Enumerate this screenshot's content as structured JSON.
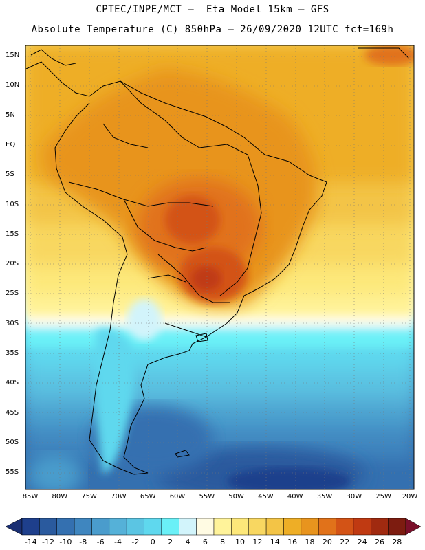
{
  "titles": {
    "line1": "CPTEC/INPE/MCT –  Eta Model 15km – GFS",
    "line2": "Absolute Temperature (C) 850hPa – 26/09/2020 12UTC fct=169h"
  },
  "map": {
    "lat_labels": [
      "15N",
      "10N",
      "5N",
      "EQ",
      "5S",
      "10S",
      "15S",
      "20S",
      "25S",
      "30S",
      "35S",
      "40S",
      "45S",
      "50S",
      "55S"
    ],
    "lon_labels": [
      "85W",
      "80W",
      "75W",
      "70W",
      "65W",
      "60W",
      "55W",
      "50W",
      "45W",
      "40W",
      "35W",
      "30W",
      "25W",
      "20W"
    ],
    "variable": "Absolute Temperature",
    "units": "C",
    "level": "850hPa"
  },
  "colorbar": {
    "labels": [
      "-14",
      "-12",
      "-10",
      "-8",
      "-6",
      "-4",
      "-2",
      "0",
      "2",
      "4",
      "6",
      "8",
      "10",
      "12",
      "14",
      "16",
      "18",
      "20",
      "22",
      "24",
      "26",
      "28"
    ],
    "colors": [
      "#1e3f8c",
      "#2a5a9e",
      "#3470b0",
      "#3f86bf",
      "#4a9ccc",
      "#55b1d8",
      "#5bc5e3",
      "#5fd8ee",
      "#6af0f7",
      "#d2f4fb",
      "#fffbe3",
      "#fff39a",
      "#fde87a",
      "#f8d761",
      "#f3c446",
      "#eeae26",
      "#e8941e",
      "#e1721a",
      "#d35316",
      "#c03a12",
      "#a02a10",
      "#7d1c10"
    ],
    "under_color": "#1a2f73",
    "over_color": "#7a0f2a"
  }
}
